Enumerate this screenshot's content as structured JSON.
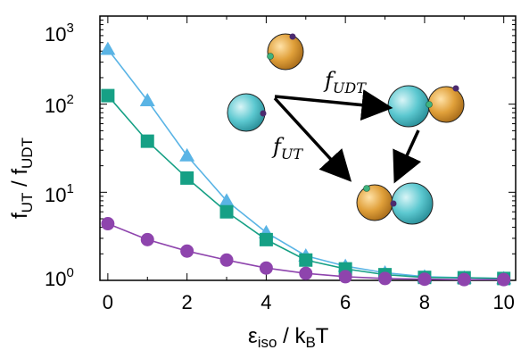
{
  "chart_data": {
    "type": "line",
    "x": [
      0,
      1,
      2,
      3,
      4,
      5,
      6,
      7,
      8,
      9,
      10
    ],
    "xlim": [
      -0.2,
      10.3
    ],
    "ylim": [
      1,
      1000
    ],
    "y_scale": "log",
    "grid": false,
    "x_ticks": [
      "0",
      "2",
      "4",
      "6",
      "8",
      "10"
    ],
    "x_tick_values": [
      0,
      2,
      4,
      6,
      8,
      10
    ],
    "y_ticks": [
      {
        "base": "10",
        "exp": "0",
        "value": 1
      },
      {
        "base": "10",
        "exp": "1",
        "value": 10
      },
      {
        "base": "10",
        "exp": "2",
        "value": 100
      },
      {
        "base": "10",
        "exp": "3",
        "value": 1000
      }
    ],
    "xlabel": {
      "main": "ε",
      "sub": "iso",
      "rest": " / k",
      "sub2": "B",
      "tail": "T"
    },
    "ylabel": {
      "p1": "f",
      "s1": "UT",
      "p2": " / f",
      "s2": "UDT"
    },
    "series": [
      {
        "marker": "triangle",
        "color": "#5ab4e5",
        "values": [
          420,
          110,
          26,
          8.0,
          3.5,
          1.9,
          1.45,
          1.22,
          1.1,
          1.07,
          1.05
        ]
      },
      {
        "marker": "square",
        "color": "#16a085",
        "values": [
          125,
          38,
          14.5,
          6.0,
          2.9,
          1.7,
          1.35,
          1.16,
          1.08,
          1.07,
          1.05
        ]
      },
      {
        "marker": "circle",
        "color": "#8e44ad",
        "values": [
          4.4,
          2.9,
          2.15,
          1.7,
          1.38,
          1.2,
          1.1,
          1.05,
          1.03,
          1.02,
          1.02
        ]
      }
    ],
    "annotations": [
      {
        "id": "f-udt",
        "main": "f",
        "sub": "UDT"
      },
      {
        "id": "f-ut",
        "main": "f",
        "sub": "UT"
      }
    ],
    "inset_colors": {
      "cyan_sphere": "#5cc8d0",
      "orange_sphere": "#e0a03a",
      "green_patch": "#3fb37f",
      "purple_patch": "#4b2a6e"
    }
  }
}
